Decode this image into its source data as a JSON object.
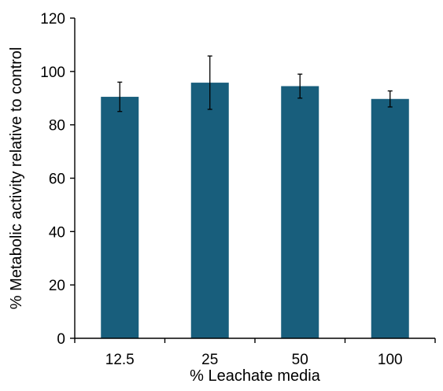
{
  "chart_data": {
    "type": "bar",
    "title": "",
    "xlabel": "% Leachate media",
    "ylabel": "% Metabolic activity relative to control",
    "categories": [
      "12.5",
      "25",
      "50",
      "100"
    ],
    "values": [
      90.5,
      95.8,
      94.5,
      89.7
    ],
    "error": [
      5.5,
      10.0,
      4.5,
      3.0
    ],
    "ylim": [
      0,
      120
    ],
    "yticks": [
      0,
      20,
      40,
      60,
      80,
      100,
      120
    ],
    "ytick_labels": [
      "0",
      "20",
      "40",
      "60",
      "80",
      "100",
      "120"
    ],
    "grid": false,
    "legend": "none",
    "bar_color": "#185e7c"
  }
}
